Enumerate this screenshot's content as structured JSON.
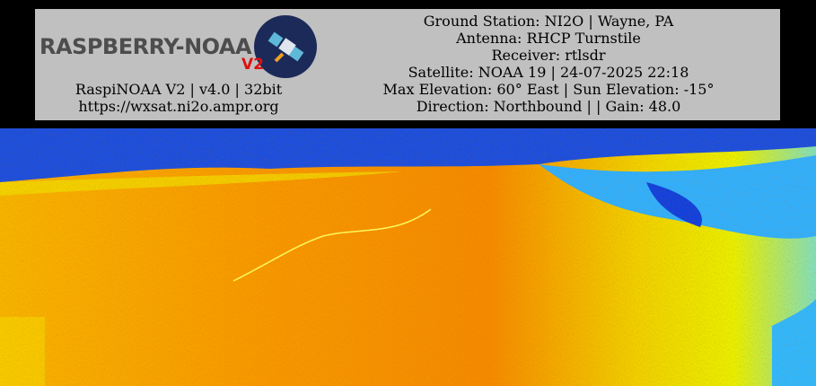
{
  "logo": {
    "text": "RASPBERRY-NOAA",
    "version": "V2"
  },
  "station": {
    "software": "RaspiNOAA V2 | v4.0 | 32bit",
    "url": "https://wxsat.ni2o.ampr.org"
  },
  "pass_info": [
    "Ground Station: NI2O | Wayne, PA",
    "Antenna: RHCP Turnstile",
    "Receiver: rtlsdr",
    "Satellite: NOAA 19 | 24-07-2025 22:18",
    "Max Elevation: 60° East | Sun Elevation: -15°",
    "Direction: Northbound | | Gain: 48.0"
  ]
}
